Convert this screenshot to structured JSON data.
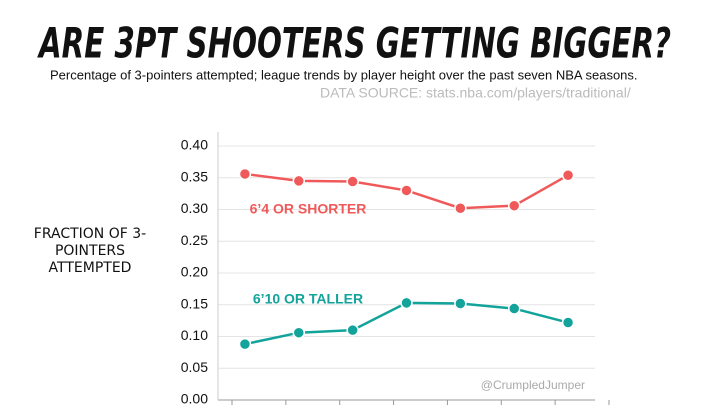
{
  "chart_data": {
    "type": "line",
    "title": "ARE 3PT SHOOTERS GETTING BIGGER?",
    "subtitle": "Percentage of 3-pointers attempted;  league trends by player height over the past seven NBA seasons.",
    "source": "DATA SOURCE: stats.nba.com/players/traditional/",
    "y_label": "FRACTION OF 3-POINTERS ATTEMPTED",
    "watermark": "@CrumpledJumper",
    "categories": [
      null,
      null,
      null,
      null,
      null,
      null,
      null
    ],
    "series": [
      {
        "name": "6’4 OR SHORTER",
        "color": "#f0595a",
        "values": [
          0.356,
          0.345,
          0.344,
          0.33,
          0.302,
          0.306,
          0.354
        ]
      },
      {
        "name": "6’10 OR TALLER",
        "color": "#12a39a",
        "values": [
          0.088,
          0.106,
          0.11,
          0.153,
          0.152,
          0.144,
          0.122
        ]
      }
    ],
    "ylim": [
      0,
      0.4
    ],
    "yticks": [
      {
        "value": 0,
        "label": "0.00"
      },
      {
        "value": 0.05,
        "label": "0.05"
      },
      {
        "value": 0.1,
        "label": "0.10"
      },
      {
        "value": 0.15,
        "label": "0.15"
      },
      {
        "value": 0.2,
        "label": "0.20"
      },
      {
        "value": 0.25,
        "label": "0.25"
      },
      {
        "value": 0.3,
        "label": "0.30"
      },
      {
        "value": 0.35,
        "label": "0.35"
      },
      {
        "value": 0.4,
        "label": "0.40"
      }
    ],
    "grid": true
  }
}
